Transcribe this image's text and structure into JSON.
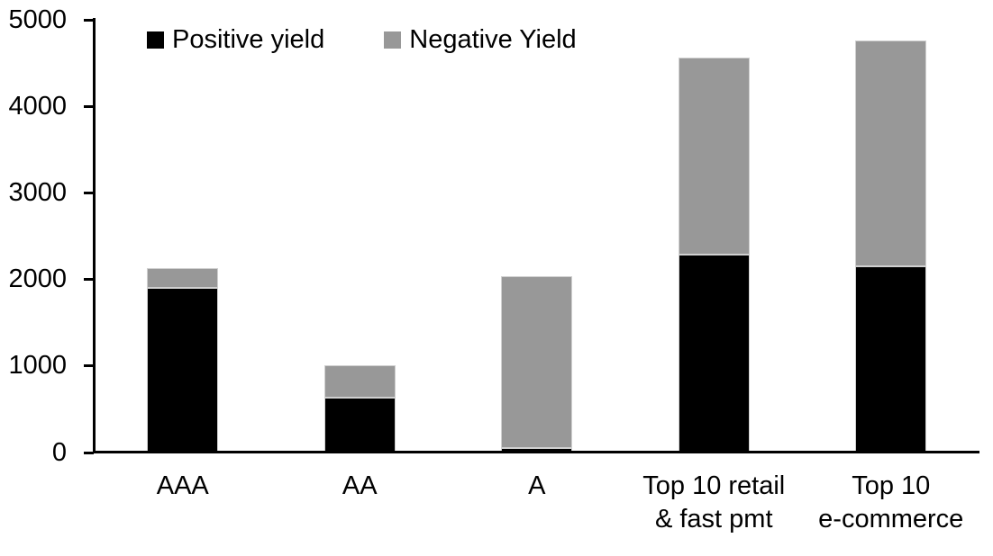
{
  "chart_data": {
    "type": "bar",
    "stacked": true,
    "title": "",
    "xlabel": "",
    "ylabel": "",
    "grid": false,
    "legend_position": "top",
    "ylim": [
      0,
      5000
    ],
    "yticks": [
      0,
      1000,
      2000,
      3000,
      4000,
      5000
    ],
    "categories": [
      "AAA",
      "AA",
      "A",
      "Top 10 retail\n& fast pmt",
      "Top 10\ne-commerce"
    ],
    "series": [
      {
        "name": "Positive yield",
        "color": "#000000",
        "values": [
          1900,
          630,
          50,
          2290,
          2150
        ]
      },
      {
        "name": "Negative Yield",
        "color": "#989898",
        "values": [
          230,
          380,
          1990,
          2270,
          2610
        ]
      }
    ],
    "totals": [
      2130,
      1010,
      2040,
      4560,
      4760
    ],
    "colors": {
      "axis": "#000000",
      "background": "#ffffff",
      "text": "#000000"
    }
  }
}
